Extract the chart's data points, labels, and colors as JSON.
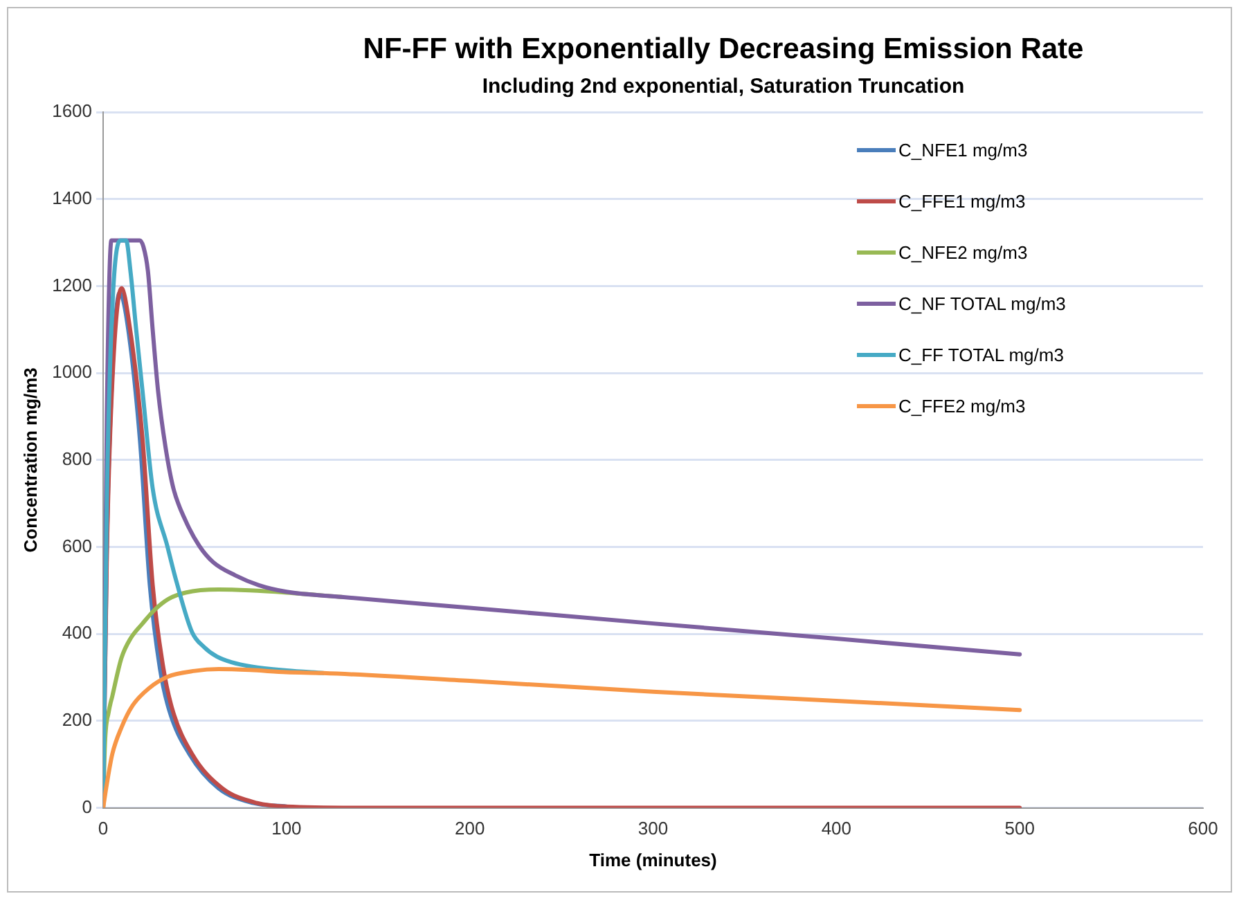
{
  "chart_data": {
    "type": "line",
    "title": "NF-FF with Exponentially Decreasing Emission Rate",
    "subtitle": "Including 2nd exponential, Saturation Truncation",
    "xlabel": "Time (minutes)",
    "ylabel": "Concentration mg/m3",
    "xlim": [
      0,
      600
    ],
    "xticks": [
      0,
      100,
      200,
      300,
      400,
      500,
      600
    ],
    "ylim": [
      0,
      1600
    ],
    "yticks": [
      0,
      200,
      400,
      600,
      800,
      1000,
      1200,
      1400,
      1600
    ],
    "grid": "y",
    "legend": "top right",
    "marker": "none",
    "line_style": "solid",
    "series": [
      {
        "name": "C_NFE1 mg/m3",
        "color": "#4a7ebb",
        "x": [
          0,
          2,
          5,
          9,
          13,
          20,
          25.5,
          31,
          36,
          47,
          63,
          82,
          100
        ],
        "values": [
          0,
          600,
          1000,
          1185,
          1120,
          850,
          510,
          320,
          225,
          124,
          45,
          11,
          3
        ]
      },
      {
        "name": "C_FFE1 mg/m3",
        "color": "#be4b48",
        "x": [
          0,
          2,
          5,
          10,
          14,
          21.5,
          27,
          32.5,
          37.5,
          48.5,
          65,
          84,
          100,
          150,
          300,
          500
        ],
        "values": [
          0,
          580,
          980,
          1195,
          1120,
          847,
          513,
          330,
          230,
          124,
          45,
          11,
          3,
          0,
          0,
          0
        ]
      },
      {
        "name": "C_NFE2 mg/m3",
        "color": "#98b954",
        "x": [
          0,
          1,
          3,
          5,
          10,
          15,
          21.5,
          28,
          35.5,
          45,
          63,
          80,
          100,
          130
        ],
        "values": [
          0,
          150,
          220,
          257,
          345,
          390,
          424,
          455,
          480,
          495,
          502,
          500,
          495,
          485
        ]
      },
      {
        "name": "C_NF TOTAL mg/m3",
        "color": "#7d60a0",
        "x": [
          0,
          2,
          4.5,
          20,
          22,
          24.4,
          27,
          30,
          34,
          38.3,
          45,
          52.5,
          60,
          71.9,
          85,
          100,
          130,
          200,
          300,
          400,
          500
        ],
        "values": [
          0,
          900,
          1305,
          1305,
          1290,
          1235,
          1100,
          957,
          830,
          735,
          660,
          602,
          565,
          535,
          512,
          497,
          485,
          460,
          424,
          389,
          353
        ]
      },
      {
        "name": "C_FF TOTAL mg/m3",
        "color": "#46aac5",
        "x": [
          0,
          2,
          5,
          9.5,
          12.5,
          15,
          18,
          21.5,
          27,
          35,
          40,
          48.5,
          55,
          62,
          70,
          81,
          100,
          120
        ],
        "values": [
          0,
          700,
          1150,
          1305,
          1305,
          1230,
          1100,
          957,
          735,
          602,
          520,
          404,
          370,
          348,
          335,
          325,
          316,
          310
        ]
      },
      {
        "name": "C_FFE2 mg/m3",
        "color": "#f79646",
        "x": [
          0,
          2,
          5,
          10,
          16,
          25,
          35.5,
          50,
          63,
          80,
          100,
          120,
          200,
          300,
          400,
          500
        ],
        "values": [
          0,
          55,
          124,
          185,
          235,
          275,
          302,
          315,
          319,
          317,
          312,
          310,
          292,
          267,
          246,
          225
        ]
      }
    ]
  }
}
